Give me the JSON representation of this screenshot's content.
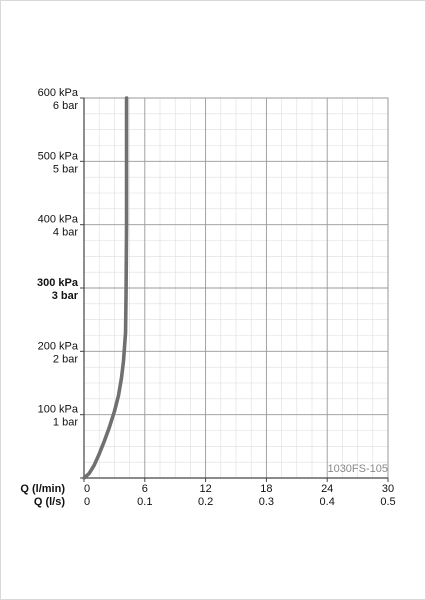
{
  "chart_data": {
    "type": "line",
    "title": "",
    "chart_code": "1030FS-105",
    "x_axis_label_primary": "Q (l/min)",
    "x_axis_label_secondary": "Q (l/s)",
    "x_ticks_primary": [
      "0",
      "6",
      "12",
      "18",
      "24",
      "30"
    ],
    "x_ticks_secondary": [
      "0",
      "0.1",
      "0.2",
      "0.3",
      "0.4",
      "0.5"
    ],
    "y_ticks": [
      {
        "value": 0,
        "kpa": "",
        "bar": "",
        "bold": false
      },
      {
        "value": 100,
        "kpa": "100 kPa",
        "bar": "1 bar",
        "bold": false
      },
      {
        "value": 200,
        "kpa": "200 kPa",
        "bar": "2 bar",
        "bold": false
      },
      {
        "value": 300,
        "kpa": "300 kPa",
        "bar": "3 bar",
        "bold": true
      },
      {
        "value": 400,
        "kpa": "400 kPa",
        "bar": "4 bar",
        "bold": false
      },
      {
        "value": 500,
        "kpa": "500 kPa",
        "bar": "5 bar",
        "bold": false
      },
      {
        "value": 600,
        "kpa": "600 kPa",
        "bar": "6 bar",
        "bold": false
      }
    ],
    "xlim": [
      0,
      30
    ],
    "ylim": [
      0,
      600
    ],
    "grid": true,
    "minor_grid_x_step": 1.5,
    "minor_grid_y_step": 25,
    "series": [
      {
        "color": "#707070",
        "x": [
          0,
          0.5,
          1.0,
          1.5,
          2.0,
          2.5,
          3.0,
          3.4,
          3.7,
          3.9,
          4.1,
          4.15,
          4.2,
          4.2
        ],
        "y": [
          0,
          7,
          20,
          38,
          58,
          80,
          105,
          130,
          158,
          185,
          230,
          290,
          400,
          600
        ]
      }
    ]
  }
}
